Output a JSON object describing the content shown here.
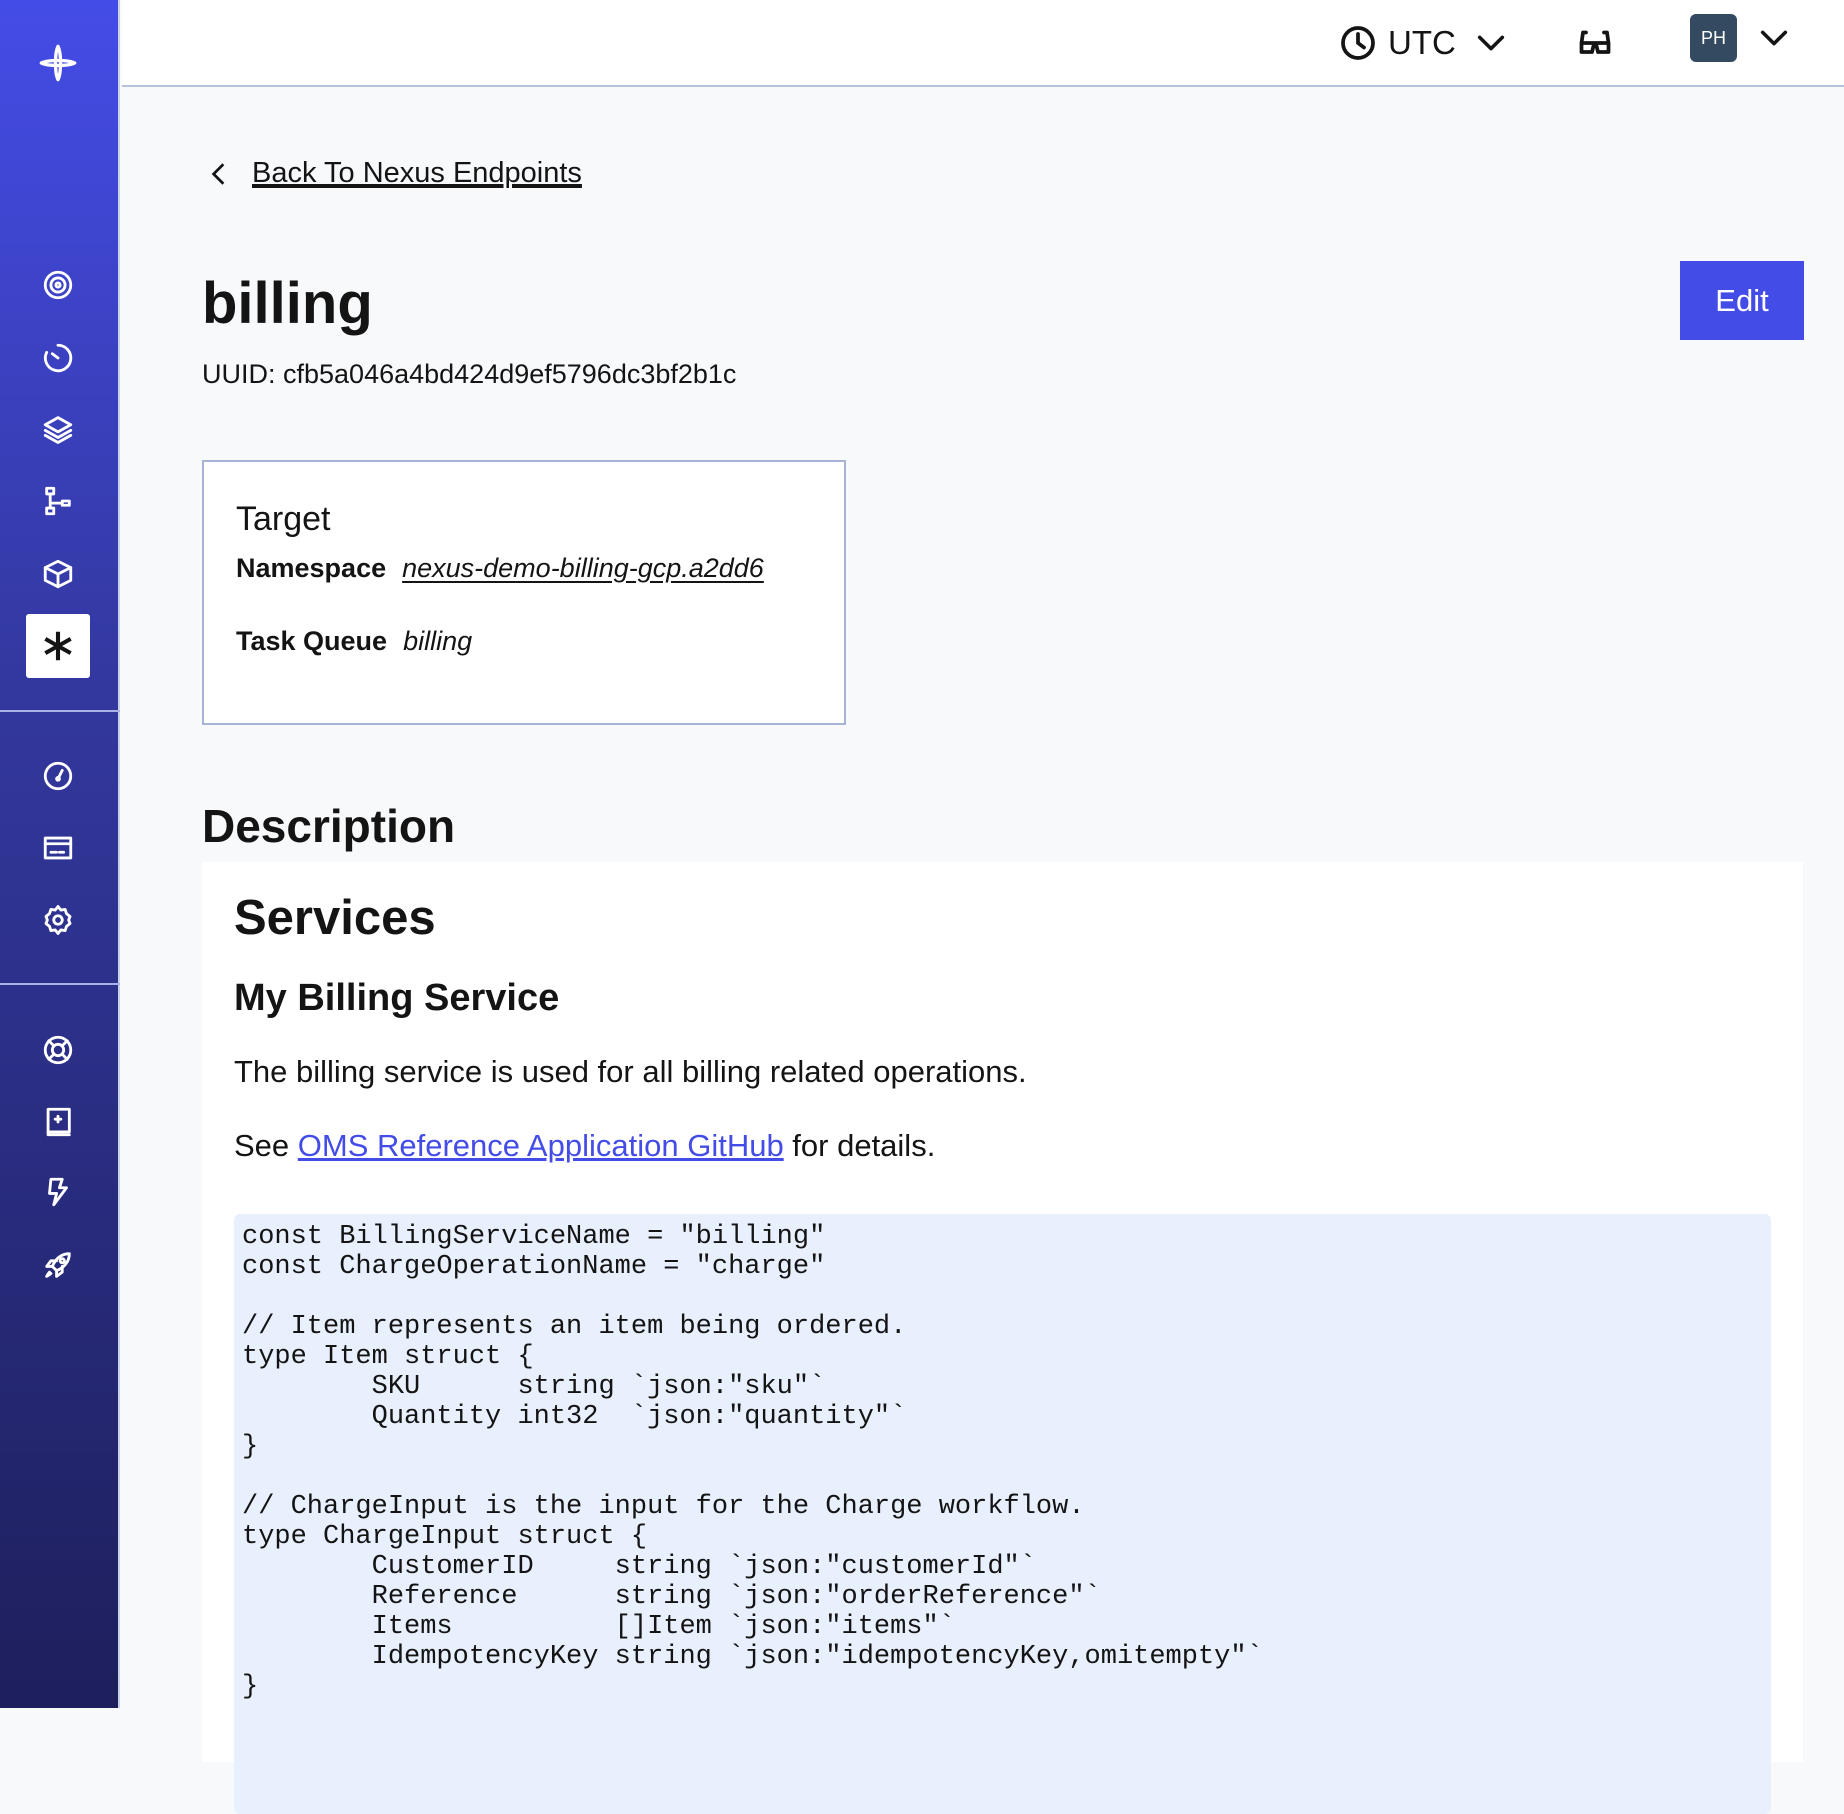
{
  "sidebar": {
    "items": [
      {
        "icon": "logo-icon"
      },
      {
        "icon": "workflows-icon"
      },
      {
        "icon": "schedules-icon"
      },
      {
        "icon": "namespaces-icon"
      },
      {
        "icon": "deployments-icon"
      },
      {
        "icon": "box-icon"
      },
      {
        "icon": "nexus-icon",
        "active": true
      },
      {
        "icon": "usage-icon"
      },
      {
        "icon": "billing-icon"
      },
      {
        "icon": "settings-icon"
      },
      {
        "icon": "support-icon"
      },
      {
        "icon": "docs-icon"
      },
      {
        "icon": "feedback-icon"
      },
      {
        "icon": "rocket-icon"
      }
    ]
  },
  "header": {
    "timezone": "UTC",
    "avatar": "PH"
  },
  "back_link": "Back To Nexus Endpoints",
  "title": "billing",
  "uuid": "UUID: cfb5a046a4bd424d9ef5796dc3bf2b1c",
  "edit_label": "Edit",
  "target": {
    "heading": "Target",
    "namespace_label": "Namespace",
    "namespace_value": "nexus-demo-billing-gcp.a2dd6",
    "task_queue_label": "Task Queue",
    "task_queue_value": "billing"
  },
  "description": {
    "heading": "Description",
    "h2": "Services",
    "h3": "My Billing Service",
    "para1": "The billing service is used for all billing related operations.",
    "para2_pre": "See ",
    "para2_link": "OMS Reference Application GitHub",
    "para2_post": " for details.",
    "code": "const BillingServiceName = \"billing\"\nconst ChargeOperationName = \"charge\"\n\n// Item represents an item being ordered.\ntype Item struct {\n        SKU      string `json:\"sku\"`\n        Quantity int32  `json:\"quantity\"`\n}\n\n// ChargeInput is the input for the Charge workflow.\ntype ChargeInput struct {\n        CustomerID     string `json:\"customerId\"`\n        Reference      string `json:\"orderReference\"`\n        Items          []Item `json:\"items\"`\n        IdempotencyKey string `json:\"idempotencyKey,omitempty\"`\n}"
  },
  "colors": {
    "accent": "#444ce7",
    "sidebar_top": "#444ce7",
    "sidebar_bottom": "#1e1f5c",
    "code_bg": "#e8effd"
  }
}
